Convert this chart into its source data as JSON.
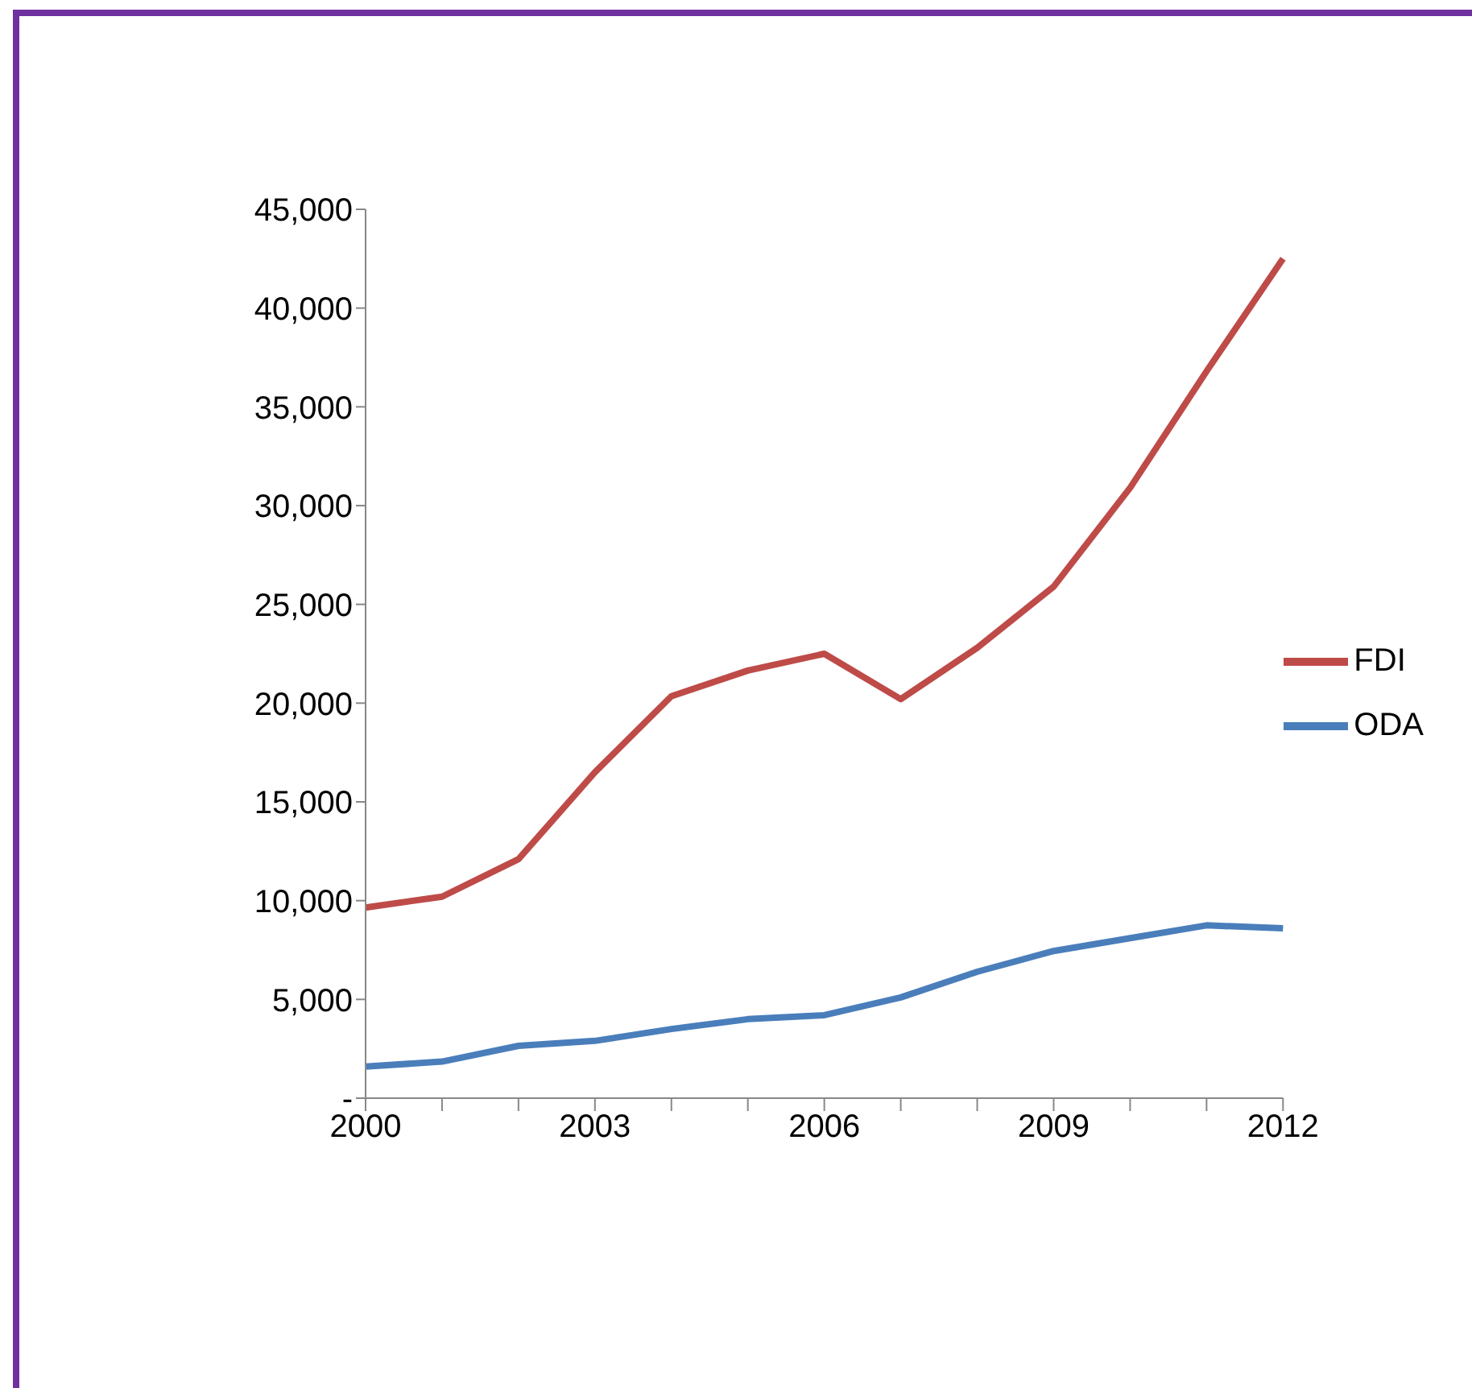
{
  "chart_data": {
    "type": "line",
    "categories": [
      "2000",
      null,
      null,
      "2003",
      null,
      null,
      "2006",
      null,
      null,
      "2009",
      null,
      null,
      "2012"
    ],
    "series": [
      {
        "name": "ODA",
        "color": "#4a7ebb",
        "values": [
          1600,
          1850,
          2650,
          2900,
          3500,
          4000,
          4200,
          5100,
          6400,
          7450,
          8100,
          8750,
          8600
        ]
      },
      {
        "name": "FDI",
        "color": "#be4b48",
        "values": [
          9650,
          10200,
          12100,
          16500,
          20350,
          21650,
          22500,
          20200,
          22800,
          25900,
          30900,
          36800,
          42500
        ]
      }
    ],
    "ylim": [
      0,
      45000
    ],
    "yticks": [
      {
        "value": 0,
        "label": "-"
      },
      {
        "value": 5000,
        "label": "5,000"
      },
      {
        "value": 10000,
        "label": "10,000"
      },
      {
        "value": 15000,
        "label": "15,000"
      },
      {
        "value": 20000,
        "label": "20,000"
      },
      {
        "value": 25000,
        "label": "25,000"
      },
      {
        "value": 30000,
        "label": "30,000"
      },
      {
        "value": 35000,
        "label": "35,000"
      },
      {
        "value": 40000,
        "label": "40,000"
      },
      {
        "value": 45000,
        "label": "45,000"
      }
    ],
    "grid": false,
    "legend": "right",
    "marker": "none",
    "line_style": "solid"
  }
}
